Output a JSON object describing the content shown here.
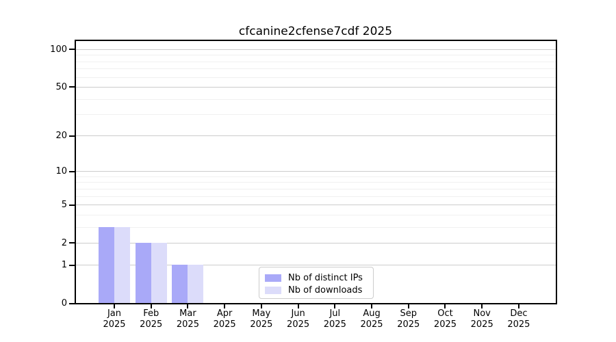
{
  "chart_data": {
    "type": "bar",
    "title": "cfcanine2cfense7cdf 2025",
    "x_tick_labels": [
      {
        "m": "Jan",
        "y": "2025"
      },
      {
        "m": "Feb",
        "y": "2025"
      },
      {
        "m": "Mar",
        "y": "2025"
      },
      {
        "m": "Apr",
        "y": "2025"
      },
      {
        "m": "May",
        "y": "2025"
      },
      {
        "m": "Jun",
        "y": "2025"
      },
      {
        "m": "Jul",
        "y": "2025"
      },
      {
        "m": "Aug",
        "y": "2025"
      },
      {
        "m": "Sep",
        "y": "2025"
      },
      {
        "m": "Oct",
        "y": "2025"
      },
      {
        "m": "Nov",
        "y": "2025"
      },
      {
        "m": "Dec",
        "y": "2025"
      }
    ],
    "series": [
      {
        "name": "Nb of distinct IPs",
        "color": "#a9a9f8",
        "values": [
          3,
          2,
          1,
          0,
          0,
          0,
          0,
          0,
          0,
          0,
          0,
          0
        ]
      },
      {
        "name": "Nb of downloads",
        "color": "#dcdcfa",
        "values": [
          3,
          2,
          1,
          0,
          0,
          0,
          0,
          0,
          0,
          0,
          0,
          0
        ]
      }
    ],
    "yscale": "log1p",
    "ylim": [
      0,
      119
    ],
    "major_yticks": [
      0,
      1,
      2,
      5,
      10,
      20,
      50,
      100
    ],
    "minor_yticks": [
      3,
      4,
      6,
      7,
      8,
      9,
      30,
      40,
      60,
      70,
      80,
      90
    ],
    "grid": true,
    "legend": {
      "position": "lower center",
      "entries": [
        "Nb of distinct IPs",
        "Nb of downloads"
      ]
    },
    "colors": {
      "major_grid": "#cccccc",
      "minor_grid": "#f0f0f0",
      "axis": "#000000",
      "background": "#ffffff"
    }
  }
}
